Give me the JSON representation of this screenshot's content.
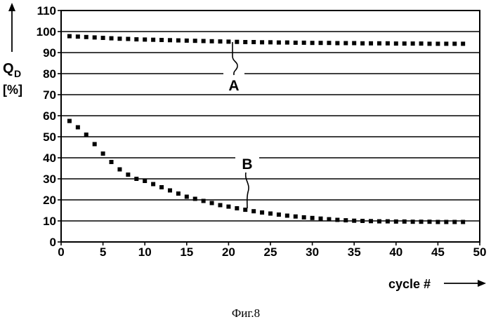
{
  "chart_data": {
    "type": "scatter",
    "xlabel": "cycle #",
    "ylabel": {
      "symbol": "Q",
      "subscript": "D",
      "unit": "[%]"
    },
    "xlim": [
      0,
      50
    ],
    "ylim": [
      0,
      110
    ],
    "xticks": [
      0,
      5,
      10,
      15,
      20,
      25,
      30,
      35,
      40,
      45,
      50
    ],
    "yticks": [
      0,
      10,
      20,
      30,
      40,
      50,
      60,
      70,
      80,
      90,
      100,
      110
    ],
    "grid": {
      "horizontal": true,
      "vertical": false
    },
    "marker": "square",
    "color": "#000000",
    "x": [
      1,
      2,
      3,
      4,
      5,
      6,
      7,
      8,
      9,
      10,
      11,
      12,
      13,
      14,
      15,
      16,
      17,
      18,
      19,
      20,
      21,
      22,
      23,
      24,
      25,
      26,
      27,
      28,
      29,
      30,
      31,
      32,
      33,
      34,
      35,
      36,
      37,
      38,
      39,
      40,
      41,
      42,
      43,
      44,
      45,
      46,
      47,
      48
    ],
    "series": [
      {
        "name": "A",
        "values": [
          97.8,
          97.6,
          97.4,
          97.2,
          97.0,
          96.8,
          96.6,
          96.5,
          96.3,
          96.2,
          96.1,
          96.0,
          95.9,
          95.8,
          95.7,
          95.6,
          95.5,
          95.4,
          95.3,
          95.2,
          95.1,
          95.0,
          95.0,
          94.9,
          94.9,
          94.8,
          94.8,
          94.7,
          94.7,
          94.6,
          94.6,
          94.6,
          94.5,
          94.5,
          94.5,
          94.4,
          94.4,
          94.4,
          94.4,
          94.3,
          94.3,
          94.3,
          94.3,
          94.2,
          94.2,
          94.2,
          94.2,
          94.2
        ]
      },
      {
        "name": "B",
        "values": [
          57.5,
          54.5,
          51.0,
          46.5,
          42.0,
          38.0,
          34.5,
          32.0,
          30.0,
          29.0,
          27.5,
          26.0,
          24.5,
          23.0,
          21.5,
          20.5,
          19.5,
          18.5,
          17.5,
          16.8,
          16.0,
          15.3,
          14.6,
          14.0,
          13.5,
          13.0,
          12.5,
          12.1,
          11.7,
          11.4,
          11.1,
          10.8,
          10.5,
          10.3,
          10.1,
          10.0,
          9.9,
          9.8,
          9.8,
          9.7,
          9.7,
          9.6,
          9.6,
          9.6,
          9.5,
          9.5,
          9.5,
          9.5
        ]
      }
    ]
  },
  "caption": "Фиг.8"
}
